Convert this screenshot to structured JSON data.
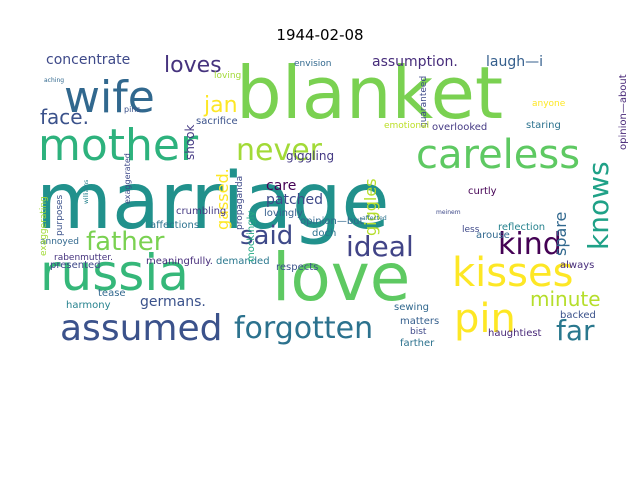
{
  "title": "1944-02-08",
  "words": [
    {
      "text": "marriage",
      "color": "#21918c"
    },
    {
      "text": "blanket",
      "color": "#7ad151"
    },
    {
      "text": "love",
      "color": "#5ec962"
    },
    {
      "text": "russia",
      "color": "#35b779"
    },
    {
      "text": "mother",
      "color": "#2db27d"
    },
    {
      "text": "careless",
      "color": "#5ec962"
    },
    {
      "text": "wife",
      "color": "#31688e"
    },
    {
      "text": "kisses",
      "color": "#fde725"
    },
    {
      "text": "assumed",
      "color": "#3b528b"
    },
    {
      "text": "forgotten",
      "color": "#2c728e"
    },
    {
      "text": "pin",
      "color": "#fde725"
    },
    {
      "text": "never",
      "color": "#a2da37"
    },
    {
      "text": "kind",
      "color": "#440154"
    },
    {
      "text": "knows",
      "color": "#1fa187"
    },
    {
      "text": "father",
      "color": "#7ad151"
    },
    {
      "text": "ideal",
      "color": "#414487"
    },
    {
      "text": "said",
      "color": "#3e4989"
    },
    {
      "text": "far",
      "color": "#2a788e"
    },
    {
      "text": "face.",
      "color": "#3b528b"
    },
    {
      "text": "loves",
      "color": "#46337e"
    },
    {
      "text": "jan",
      "color": "#fde725"
    },
    {
      "text": "minute",
      "color": "#b5de2b"
    },
    {
      "text": "concentrate",
      "color": "#3e4989"
    },
    {
      "text": "assumption.",
      "color": "#472d7b"
    },
    {
      "text": "laugh—i",
      "color": "#355f8d"
    },
    {
      "text": "germans.",
      "color": "#3b528b"
    },
    {
      "text": "gassed.",
      "color": "#fde725"
    },
    {
      "text": "spare",
      "color": "#31688e"
    },
    {
      "text": "care",
      "color": "#440154"
    },
    {
      "text": "patched",
      "color": "#3e4989"
    },
    {
      "text": "giggles",
      "color": "#b5de2b"
    },
    {
      "text": "giggling",
      "color": "#443983"
    },
    {
      "text": "shook",
      "color": "#443983"
    },
    {
      "text": "sacrifice",
      "color": "#3b528b"
    },
    {
      "text": "envision",
      "color": "#31688e"
    },
    {
      "text": "loving",
      "color": "#a2da37"
    },
    {
      "text": "guaranteed",
      "color": "#3e4989"
    },
    {
      "text": "staring",
      "color": "#2c728e"
    },
    {
      "text": "anyone",
      "color": "#fde725"
    },
    {
      "text": "overlooked",
      "color": "#443983"
    },
    {
      "text": "emotional",
      "color": "#bddf26"
    },
    {
      "text": "curtly",
      "color": "#440154"
    },
    {
      "text": "reflection",
      "color": "#26828e"
    },
    {
      "text": "opinion—but",
      "color": "#31688e"
    },
    {
      "text": "doch",
      "color": "#2c728e"
    },
    {
      "text": "always",
      "color": "#472d7b"
    },
    {
      "text": "backed",
      "color": "#3b528b"
    },
    {
      "text": "matters",
      "color": "#355f8d"
    },
    {
      "text": "haughtiest",
      "color": "#482878"
    },
    {
      "text": "farther",
      "color": "#2c728e"
    },
    {
      "text": "bist",
      "color": "#3e4989"
    },
    {
      "text": "sewing",
      "color": "#31688e"
    },
    {
      "text": "respects",
      "color": "#3b528b"
    },
    {
      "text": "demanded",
      "color": "#2a788e"
    },
    {
      "text": "meaningfully.",
      "color": "#472d7b"
    },
    {
      "text": "lovingly",
      "color": "#355f8d"
    },
    {
      "text": "mockingly",
      "color": "#22a884"
    },
    {
      "text": "propaganda",
      "color": "#3e4989"
    },
    {
      "text": "crumbling",
      "color": "#443983"
    },
    {
      "text": "affections",
      "color": "#2c728e"
    },
    {
      "text": "presented",
      "color": "#3e4989"
    },
    {
      "text": "tease",
      "color": "#31688e"
    },
    {
      "text": "harmony",
      "color": "#26828e"
    },
    {
      "text": "rabenmutter.",
      "color": "#46337e"
    },
    {
      "text": "annoyed",
      "color": "#31688e"
    },
    {
      "text": "purposes",
      "color": "#3b528b"
    },
    {
      "text": "exaggerating",
      "color": "#a2da37"
    },
    {
      "text": "exaggerated",
      "color": "#3e4989"
    },
    {
      "text": "arouse",
      "color": "#31688e"
    },
    {
      "text": "less",
      "color": "#3e4989"
    },
    {
      "text": "opinion—about",
      "color": "#482878"
    },
    {
      "text": "pins",
      "color": "#3b528b"
    },
    {
      "text": "aching",
      "color": "#31688e"
    },
    {
      "text": "williams",
      "color": "#26828e"
    },
    {
      "text": "affected",
      "color": "#2c728e"
    },
    {
      "text": "meinem",
      "color": "#3e4989"
    }
  ]
}
